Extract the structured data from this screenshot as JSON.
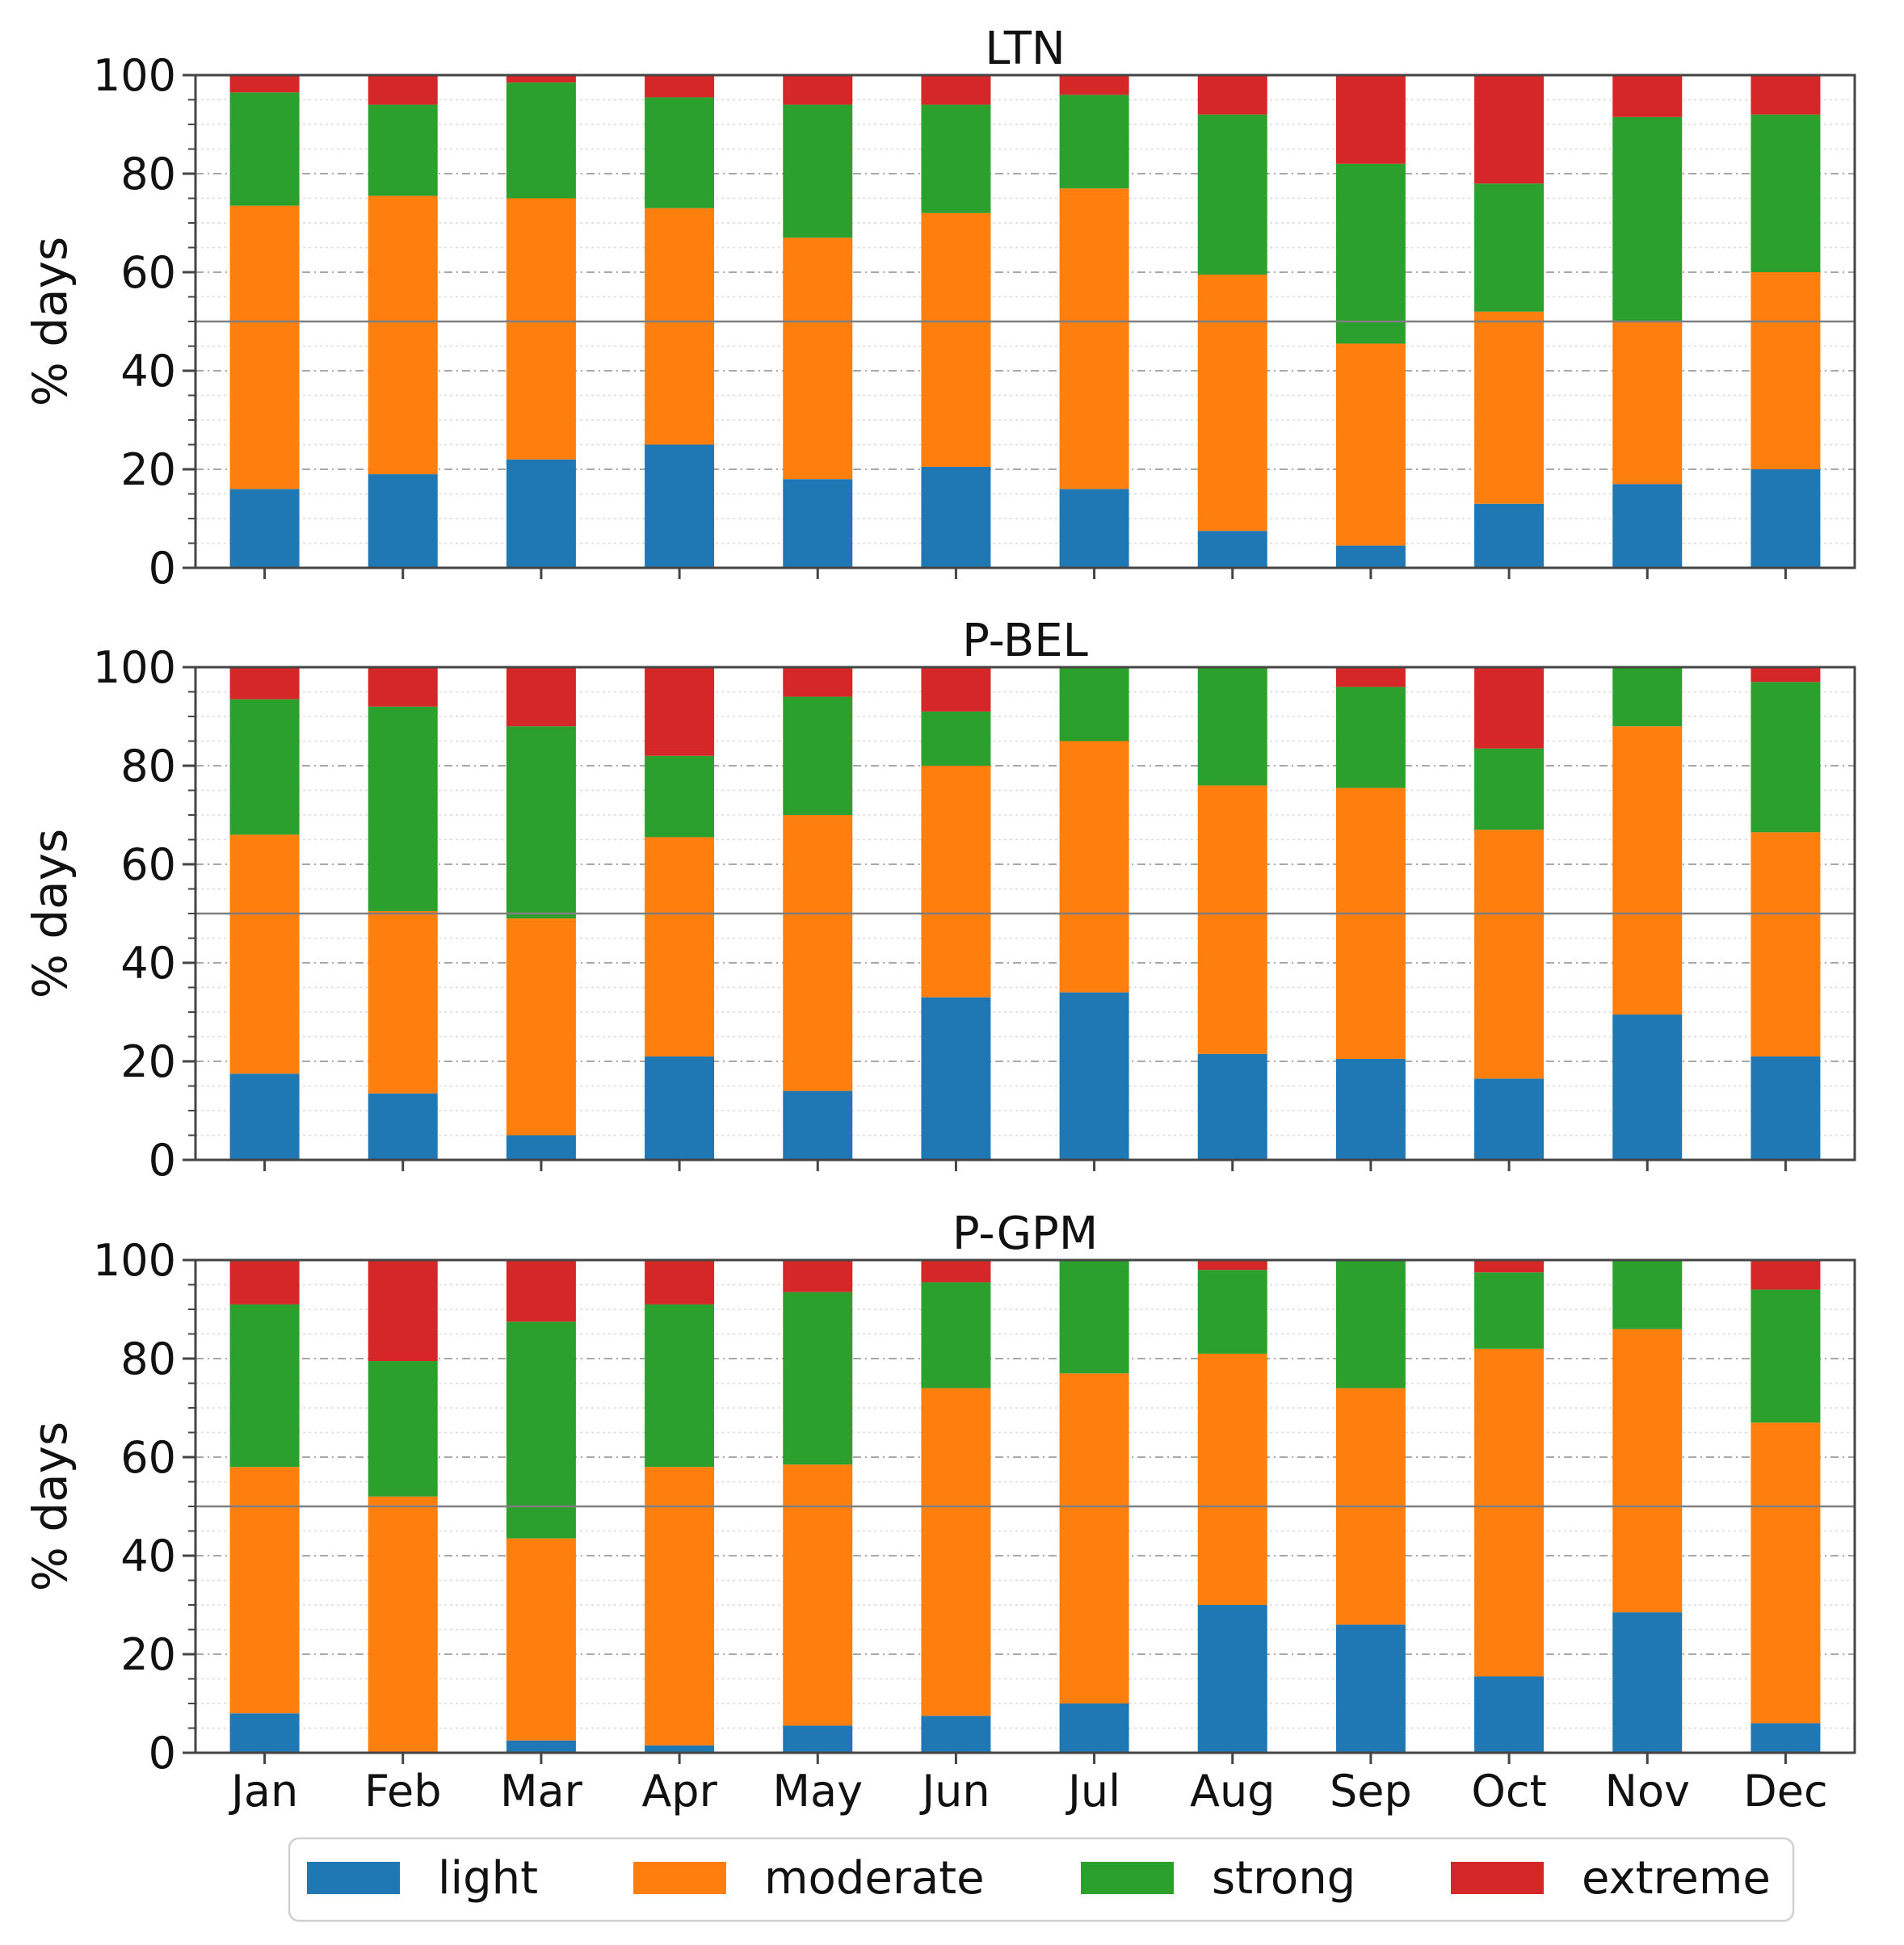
{
  "chart_data": {
    "type": "bar",
    "stacked": true,
    "colors": {
      "light": "#1f77b4",
      "moderate": "#ff7f0e",
      "strong": "#2ca02c",
      "extreme": "#d62728"
    },
    "categories": [
      "Jan",
      "Feb",
      "Mar",
      "Apr",
      "May",
      "Jun",
      "Jul",
      "Aug",
      "Sep",
      "Oct",
      "Nov",
      "Dec"
    ],
    "ylim": [
      0,
      100
    ],
    "yticks": [
      "0",
      "20",
      "40",
      "60",
      "80",
      "100"
    ],
    "reference_line": 50,
    "legend": {
      "position": "bottom",
      "labels": [
        "light",
        "moderate",
        "strong",
        "extreme"
      ]
    },
    "panels": [
      {
        "title": "LTN",
        "ylabel": "% days",
        "series": [
          {
            "name": "light",
            "values": [
              16,
              19,
              22,
              25,
              18,
              20.5,
              16,
              7.5,
              4.5,
              13,
              17,
              20
            ]
          },
          {
            "name": "moderate",
            "values": [
              57.5,
              56.5,
              53,
              48,
              49,
              51.5,
              61,
              52,
              41,
              39,
              33,
              40
            ]
          },
          {
            "name": "strong",
            "values": [
              23,
              18.5,
              23.5,
              22.5,
              27,
              22,
              19,
              32.5,
              36.5,
              26,
              41.5,
              32
            ]
          },
          {
            "name": "extreme",
            "values": [
              3.5,
              6,
              1.5,
              4.5,
              6,
              6,
              4,
              8,
              18,
              22,
              8.5,
              8
            ]
          }
        ]
      },
      {
        "title": "P-BEL",
        "ylabel": "% days",
        "series": [
          {
            "name": "light",
            "values": [
              17.5,
              13.5,
              5,
              21,
              14,
              33,
              34,
              21.5,
              20.5,
              16.5,
              29.5,
              21
            ]
          },
          {
            "name": "moderate",
            "values": [
              48.5,
              37,
              44,
              44.5,
              56,
              47,
              51,
              54.5,
              55,
              50.5,
              58.5,
              45.5
            ]
          },
          {
            "name": "strong",
            "values": [
              27.5,
              41.5,
              39,
              16.5,
              24,
              11,
              15,
              24,
              20.5,
              16.5,
              12,
              30.5
            ]
          },
          {
            "name": "extreme",
            "values": [
              6.5,
              8,
              12,
              18,
              6,
              9,
              0,
              0,
              4,
              16.5,
              0,
              3
            ]
          }
        ]
      },
      {
        "title": "P-GPM",
        "ylabel": "% days",
        "series": [
          {
            "name": "light",
            "values": [
              8,
              0,
              2.5,
              1.5,
              5.5,
              7.5,
              10,
              30,
              26,
              15.5,
              28.5,
              6
            ]
          },
          {
            "name": "moderate",
            "values": [
              50,
              52,
              41,
              56.5,
              53,
              66.5,
              67,
              51,
              48,
              66.5,
              57.5,
              61
            ]
          },
          {
            "name": "strong",
            "values": [
              33,
              27.5,
              44,
              33,
              35,
              21.5,
              23,
              17,
              26,
              15.5,
              14,
              27
            ]
          },
          {
            "name": "extreme",
            "values": [
              9,
              20.5,
              12.5,
              9,
              6.5,
              4.5,
              0,
              2,
              0,
              2.5,
              0,
              6
            ]
          }
        ]
      }
    ]
  }
}
